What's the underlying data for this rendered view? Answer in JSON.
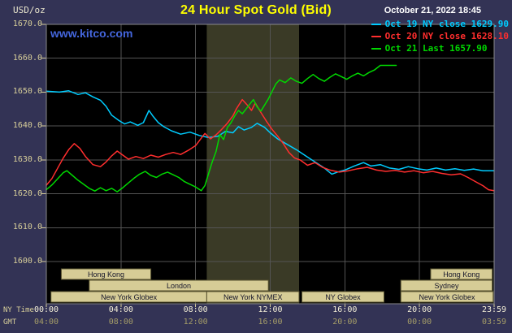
{
  "header": {
    "units": "USD/oz",
    "title": "24 Hour Spot Gold (Bid)",
    "datetime": "October 21, 2022 18:45",
    "watermark": "www.kitco.com"
  },
  "legend": {
    "items": [
      {
        "label": "Oct 19 NY close 1629.90",
        "color": "#00ccff"
      },
      {
        "label": "Oct 20 NY close 1628.10",
        "color": "#ff2e2e"
      },
      {
        "label": "Oct 21 Last 1657.90",
        "color": "#00d800"
      }
    ]
  },
  "axes": {
    "ny_row_label": "NY Time",
    "gmt_row_label": "GMT",
    "y_ticks": [
      {
        "value": 1600,
        "label": "1600.0"
      },
      {
        "value": 1610,
        "label": "1610.0"
      },
      {
        "value": 1620,
        "label": "1620.0"
      },
      {
        "value": 1630,
        "label": "1630.0"
      },
      {
        "value": 1640,
        "label": "1640.0"
      },
      {
        "value": 1650,
        "label": "1650.0"
      },
      {
        "value": 1660,
        "label": "1660.0"
      },
      {
        "value": 1670,
        "label": "1670.0"
      }
    ],
    "ny_ticks": [
      {
        "hour": 0,
        "label": "00:00"
      },
      {
        "hour": 4,
        "label": "04:00"
      },
      {
        "hour": 8,
        "label": "08:00"
      },
      {
        "hour": 12,
        "label": "12:00"
      },
      {
        "hour": 16,
        "label": "16:00"
      },
      {
        "hour": 20,
        "label": "20:00"
      },
      {
        "hour": 24,
        "label": "23:59"
      }
    ],
    "gmt_ticks": [
      {
        "hour": 0,
        "label": "04:00"
      },
      {
        "hour": 4,
        "label": "08:00"
      },
      {
        "hour": 8,
        "label": "12:00"
      },
      {
        "hour": 12,
        "label": "16:00"
      },
      {
        "hour": 16,
        "label": "20:00"
      },
      {
        "hour": 20,
        "label": "00:00"
      },
      {
        "hour": 24,
        "label": "03:59"
      }
    ]
  },
  "sessions": {
    "box_fill": "#d6cc96",
    "box_border": "#55502e",
    "text_color": "#14142a",
    "rows": [
      {
        "boxes": [
          {
            "label": "Hong Kong",
            "start": 0.8,
            "end": 5.6
          },
          {
            "label": "Hong Kong",
            "start": 20.6,
            "end": 23.9
          }
        ]
      },
      {
        "boxes": [
          {
            "label": "London",
            "start": 2.3,
            "end": 11.9
          },
          {
            "label": "Sydney",
            "start": 19.0,
            "end": 23.9
          }
        ]
      },
      {
        "boxes": [
          {
            "label": "New York Globex",
            "start": 0.25,
            "end": 8.6
          },
          {
            "label": "New York NYMEX",
            "start": 8.6,
            "end": 13.55
          },
          {
            "label": "NY Globex",
            "start": 13.7,
            "end": 18.1
          },
          {
            "label": "New York Globex",
            "start": 19.0,
            "end": 23.95
          }
        ]
      }
    ]
  },
  "chart_data": {
    "type": "line",
    "title": "24 Hour Spot Gold (Bid)",
    "xlabel": "NY time (hours)",
    "ylabel": "USD/oz",
    "xlim": [
      0,
      24
    ],
    "ylim": [
      1600,
      1670
    ],
    "grid": true,
    "highlight_band_hours": [
      8.6,
      13.55
    ],
    "colors": {
      "background": "#333355",
      "plot_bg": "#000000",
      "band": "#3a3a26",
      "grid": "#545454",
      "frame": "#8a8a8a",
      "axis_text": "#d8cf9a",
      "ny_time_text": "#f5f0d8",
      "gmt_text": "#a59d68",
      "title": "#ffff00",
      "date": "#ffffff",
      "watermark": "#4466dd"
    },
    "series": [
      {
        "name": "Oct 19",
        "legend": "Oct 19 NY close 1629.90",
        "close": 1629.9,
        "color": "#00ccff",
        "points": [
          [
            0,
            1650.3
          ],
          [
            0.7,
            1650.0
          ],
          [
            1.2,
            1650.4
          ],
          [
            1.7,
            1649.3
          ],
          [
            2.1,
            1649.8
          ],
          [
            2.5,
            1648.6
          ],
          [
            2.9,
            1647.6
          ],
          [
            3.2,
            1645.8
          ],
          [
            3.5,
            1643.2
          ],
          [
            3.9,
            1641.6
          ],
          [
            4.2,
            1640.6
          ],
          [
            4.5,
            1641.2
          ],
          [
            4.9,
            1640.2
          ],
          [
            5.2,
            1641.0
          ],
          [
            5.5,
            1644.6
          ],
          [
            5.7,
            1643.0
          ],
          [
            6.0,
            1641.0
          ],
          [
            6.3,
            1639.8
          ],
          [
            6.7,
            1638.6
          ],
          [
            7.2,
            1637.6
          ],
          [
            7.7,
            1638.2
          ],
          [
            8.2,
            1637.2
          ],
          [
            8.7,
            1636.6
          ],
          [
            9.2,
            1637.0
          ],
          [
            9.6,
            1638.4
          ],
          [
            10.0,
            1638.0
          ],
          [
            10.3,
            1639.8
          ],
          [
            10.6,
            1638.8
          ],
          [
            11.0,
            1639.6
          ],
          [
            11.3,
            1640.8
          ],
          [
            11.7,
            1639.6
          ],
          [
            12.0,
            1638.0
          ],
          [
            12.4,
            1636.2
          ],
          [
            12.9,
            1634.6
          ],
          [
            13.4,
            1633.0
          ],
          [
            13.9,
            1631.2
          ],
          [
            14.4,
            1629.4
          ],
          [
            14.9,
            1627.6
          ],
          [
            15.3,
            1625.8
          ],
          [
            15.6,
            1626.4
          ],
          [
            16.0,
            1627.0
          ],
          [
            16.5,
            1628.2
          ],
          [
            17.0,
            1629.2
          ],
          [
            17.4,
            1628.2
          ],
          [
            17.9,
            1628.6
          ],
          [
            18.4,
            1627.6
          ],
          [
            18.9,
            1627.2
          ],
          [
            19.4,
            1628.0
          ],
          [
            19.9,
            1627.4
          ],
          [
            20.4,
            1627.0
          ],
          [
            20.9,
            1627.6
          ],
          [
            21.4,
            1627.0
          ],
          [
            21.9,
            1627.4
          ],
          [
            22.4,
            1626.9
          ],
          [
            22.9,
            1627.3
          ],
          [
            23.4,
            1626.8
          ],
          [
            24,
            1626.8
          ]
        ]
      },
      {
        "name": "Oct 20",
        "legend": "Oct 20 NY close 1628.10",
        "close": 1628.1,
        "color": "#ff2e2e",
        "points": [
          [
            0,
            1622.5
          ],
          [
            0.3,
            1624.5
          ],
          [
            0.6,
            1627.5
          ],
          [
            0.9,
            1630.5
          ],
          [
            1.2,
            1633.0
          ],
          [
            1.5,
            1634.8
          ],
          [
            1.8,
            1633.4
          ],
          [
            2.1,
            1631.0
          ],
          [
            2.5,
            1628.6
          ],
          [
            2.9,
            1628.0
          ],
          [
            3.2,
            1629.4
          ],
          [
            3.5,
            1631.2
          ],
          [
            3.8,
            1632.6
          ],
          [
            4.1,
            1631.4
          ],
          [
            4.4,
            1630.2
          ],
          [
            4.8,
            1631.0
          ],
          [
            5.2,
            1630.4
          ],
          [
            5.6,
            1631.4
          ],
          [
            6.0,
            1630.8
          ],
          [
            6.4,
            1631.6
          ],
          [
            6.8,
            1632.2
          ],
          [
            7.2,
            1631.6
          ],
          [
            7.6,
            1632.8
          ],
          [
            8.0,
            1634.2
          ],
          [
            8.3,
            1636.4
          ],
          [
            8.5,
            1637.8
          ],
          [
            8.8,
            1636.2
          ],
          [
            9.1,
            1637.4
          ],
          [
            9.4,
            1639.0
          ],
          [
            9.7,
            1640.8
          ],
          [
            10.0,
            1643.0
          ],
          [
            10.2,
            1645.2
          ],
          [
            10.5,
            1647.8
          ],
          [
            10.8,
            1646.0
          ],
          [
            11.0,
            1644.6
          ],
          [
            11.2,
            1646.8
          ],
          [
            11.5,
            1644.0
          ],
          [
            11.8,
            1641.4
          ],
          [
            12.1,
            1639.0
          ],
          [
            12.4,
            1637.0
          ],
          [
            12.7,
            1634.8
          ],
          [
            13.0,
            1632.2
          ],
          [
            13.3,
            1630.6
          ],
          [
            13.6,
            1630.0
          ],
          [
            14.0,
            1628.4
          ],
          [
            14.4,
            1629.2
          ],
          [
            14.8,
            1627.8
          ],
          [
            15.2,
            1627.0
          ],
          [
            15.7,
            1626.4
          ],
          [
            16.2,
            1626.8
          ],
          [
            16.7,
            1627.4
          ],
          [
            17.2,
            1627.8
          ],
          [
            17.7,
            1627.0
          ],
          [
            18.2,
            1626.6
          ],
          [
            18.7,
            1626.9
          ],
          [
            19.2,
            1626.4
          ],
          [
            19.7,
            1626.8
          ],
          [
            20.2,
            1626.2
          ],
          [
            20.7,
            1626.6
          ],
          [
            21.2,
            1626.0
          ],
          [
            21.7,
            1625.6
          ],
          [
            22.2,
            1625.9
          ],
          [
            22.6,
            1624.8
          ],
          [
            23.0,
            1623.6
          ],
          [
            23.4,
            1622.4
          ],
          [
            23.7,
            1621.2
          ],
          [
            24,
            1620.9
          ]
        ]
      },
      {
        "name": "Oct 21",
        "legend": "Oct 21 Last 1657.90",
        "last": 1657.9,
        "color": "#00d800",
        "points": [
          [
            0,
            1621.2
          ],
          [
            0.3,
            1622.6
          ],
          [
            0.6,
            1624.4
          ],
          [
            0.9,
            1626.2
          ],
          [
            1.1,
            1626.8
          ],
          [
            1.4,
            1625.4
          ],
          [
            1.7,
            1624.0
          ],
          [
            2.0,
            1622.8
          ],
          [
            2.3,
            1621.6
          ],
          [
            2.6,
            1620.8
          ],
          [
            2.9,
            1621.8
          ],
          [
            3.2,
            1620.9
          ],
          [
            3.5,
            1621.6
          ],
          [
            3.8,
            1620.6
          ],
          [
            4.1,
            1621.8
          ],
          [
            4.4,
            1623.2
          ],
          [
            4.7,
            1624.6
          ],
          [
            5.0,
            1625.8
          ],
          [
            5.3,
            1626.6
          ],
          [
            5.6,
            1625.4
          ],
          [
            5.9,
            1624.8
          ],
          [
            6.2,
            1625.8
          ],
          [
            6.5,
            1626.4
          ],
          [
            6.8,
            1625.6
          ],
          [
            7.1,
            1624.8
          ],
          [
            7.4,
            1623.6
          ],
          [
            7.7,
            1622.8
          ],
          [
            8.0,
            1622.0
          ],
          [
            8.3,
            1620.9
          ],
          [
            8.5,
            1622.4
          ],
          [
            8.7,
            1626.0
          ],
          [
            8.9,
            1629.5
          ],
          [
            9.1,
            1632.5
          ],
          [
            9.3,
            1637.5
          ],
          [
            9.5,
            1636.0
          ],
          [
            9.7,
            1639.5
          ],
          [
            9.9,
            1641.0
          ],
          [
            10.1,
            1643.0
          ],
          [
            10.3,
            1644.6
          ],
          [
            10.5,
            1643.6
          ],
          [
            10.7,
            1645.0
          ],
          [
            10.9,
            1646.4
          ],
          [
            11.1,
            1647.8
          ],
          [
            11.3,
            1645.6
          ],
          [
            11.5,
            1644.4
          ],
          [
            11.7,
            1646.2
          ],
          [
            11.9,
            1648.0
          ],
          [
            12.1,
            1650.2
          ],
          [
            12.3,
            1652.4
          ],
          [
            12.5,
            1653.6
          ],
          [
            12.8,
            1652.8
          ],
          [
            13.1,
            1654.2
          ],
          [
            13.4,
            1653.2
          ],
          [
            13.7,
            1652.6
          ],
          [
            14.0,
            1654.0
          ],
          [
            14.3,
            1655.2
          ],
          [
            14.6,
            1654.0
          ],
          [
            14.9,
            1653.2
          ],
          [
            15.2,
            1654.4
          ],
          [
            15.5,
            1655.4
          ],
          [
            15.8,
            1654.6
          ],
          [
            16.1,
            1653.8
          ],
          [
            16.4,
            1654.8
          ],
          [
            16.7,
            1655.6
          ],
          [
            17.0,
            1654.8
          ],
          [
            17.3,
            1655.8
          ],
          [
            17.6,
            1656.6
          ],
          [
            17.9,
            1657.9
          ],
          [
            18.75,
            1657.9
          ]
        ]
      }
    ]
  }
}
